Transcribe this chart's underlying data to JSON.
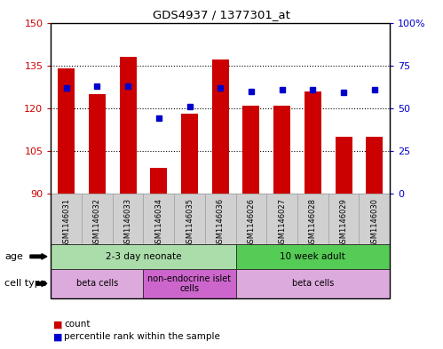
{
  "title": "GDS4937 / 1377301_at",
  "samples": [
    "GSM1146031",
    "GSM1146032",
    "GSM1146033",
    "GSM1146034",
    "GSM1146035",
    "GSM1146036",
    "GSM1146026",
    "GSM1146027",
    "GSM1146028",
    "GSM1146029",
    "GSM1146030"
  ],
  "counts": [
    134,
    125,
    138,
    99,
    118,
    137,
    121,
    121,
    126,
    110,
    110
  ],
  "percentiles": [
    62,
    63,
    63,
    44,
    51,
    62,
    60,
    61,
    61,
    59,
    61
  ],
  "ymin": 90,
  "ymax": 150,
  "yticks": [
    90,
    105,
    120,
    135,
    150
  ],
  "right_yticks": [
    0,
    25,
    50,
    75,
    100
  ],
  "bar_color": "#cc0000",
  "dot_color": "#0000cc",
  "background_color": "#ffffff",
  "age_groups": [
    {
      "label": "2-3 day neonate",
      "start": 0,
      "end": 6,
      "color": "#aaddaa"
    },
    {
      "label": "10 week adult",
      "start": 6,
      "end": 11,
      "color": "#55cc55"
    }
  ],
  "cell_type_groups": [
    {
      "label": "beta cells",
      "start": 0,
      "end": 3,
      "color": "#ddaadd"
    },
    {
      "label": "non-endocrine islet\ncells",
      "start": 3,
      "end": 6,
      "color": "#cc66cc"
    },
    {
      "label": "beta cells",
      "start": 6,
      "end": 11,
      "color": "#ddaadd"
    }
  ],
  "legend_items": [
    {
      "color": "#cc0000",
      "label": "count"
    },
    {
      "color": "#0000cc",
      "label": "percentile rank within the sample"
    }
  ]
}
